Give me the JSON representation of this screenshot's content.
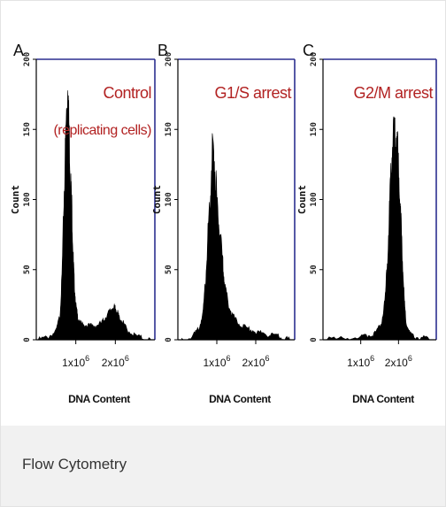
{
  "caption": "Flow Cytometry",
  "chart_data": [
    {
      "type": "area",
      "panel_label": "A",
      "annotation": [
        "Control",
        "(replicating cells)"
      ],
      "annotation_color": "#b22222",
      "ylabel": "Count",
      "xlabel": "DNA Content",
      "ylim": [
        0,
        200
      ],
      "xlim": [
        0,
        3.0
      ],
      "x_unit": "x10^6",
      "y_ticks": [
        "0",
        "50",
        "100",
        "150",
        "200"
      ],
      "x_ticks": [
        {
          "value": 1,
          "label": "1x10",
          "exp": "6"
        },
        {
          "value": 2,
          "label": "2x10",
          "exp": "6"
        }
      ],
      "x": [
        0.05,
        0.3,
        0.5,
        0.6,
        0.65,
        0.7,
        0.75,
        0.8,
        0.83,
        0.86,
        0.9,
        0.93,
        0.96,
        1.0,
        1.05,
        1.1,
        1.2,
        1.35,
        1.5,
        1.65,
        1.75,
        1.85,
        1.95,
        2.0,
        2.05,
        2.1,
        2.2,
        2.3,
        2.5,
        2.7,
        2.9
      ],
      "y": [
        0,
        2,
        6,
        18,
        45,
        100,
        150,
        185,
        150,
        120,
        95,
        62,
        42,
        25,
        16,
        12,
        11,
        10,
        10,
        12,
        16,
        20,
        24,
        22,
        20,
        16,
        12,
        7,
        3,
        1,
        0
      ]
    },
    {
      "type": "area",
      "panel_label": "B",
      "annotation": [
        "G1/S arrest"
      ],
      "annotation_color": "#b22222",
      "ylabel": "Count",
      "xlabel": "DNA Content",
      "ylim": [
        0,
        200
      ],
      "xlim": [
        0,
        3.0
      ],
      "x_unit": "x10^6",
      "y_ticks": [
        "0",
        "50",
        "100",
        "150",
        "200"
      ],
      "x_ticks": [
        {
          "value": 1,
          "label": "1x10",
          "exp": "6"
        },
        {
          "value": 2,
          "label": "2x10",
          "exp": "6"
        }
      ],
      "x": [
        0.1,
        0.4,
        0.55,
        0.65,
        0.72,
        0.78,
        0.84,
        0.9,
        0.96,
        1.02,
        1.08,
        1.15,
        1.2,
        1.3,
        1.4,
        1.55,
        1.7,
        1.9,
        2.1,
        2.3,
        2.5,
        2.7,
        2.9
      ],
      "y": [
        0,
        3,
        8,
        20,
        45,
        80,
        110,
        140,
        120,
        90,
        75,
        55,
        40,
        25,
        18,
        12,
        9,
        7,
        5,
        4,
        3,
        1,
        0
      ]
    },
    {
      "type": "area",
      "panel_label": "C",
      "annotation": [
        "G2/M arrest"
      ],
      "annotation_color": "#b22222",
      "ylabel": "Count",
      "xlabel": "DNA Content",
      "ylim": [
        0,
        200
      ],
      "xlim": [
        0,
        3.0
      ],
      "x_unit": "x10^6",
      "y_ticks": [
        "0",
        "50",
        "100",
        "150",
        "200"
      ],
      "x_ticks": [
        {
          "value": 1,
          "label": "1x10",
          "exp": "6"
        },
        {
          "value": 2,
          "label": "2x10",
          "exp": "6"
        }
      ],
      "x": [
        0.1,
        0.6,
        1.0,
        1.2,
        1.4,
        1.55,
        1.65,
        1.72,
        1.78,
        1.84,
        1.9,
        1.95,
        2.0,
        2.05,
        2.1,
        2.15,
        2.2,
        2.3,
        2.45,
        2.7,
        2.9
      ],
      "y": [
        0,
        1,
        2,
        3,
        5,
        12,
        30,
        65,
        105,
        140,
        150,
        148,
        125,
        95,
        60,
        30,
        12,
        5,
        2,
        1,
        0
      ]
    }
  ]
}
